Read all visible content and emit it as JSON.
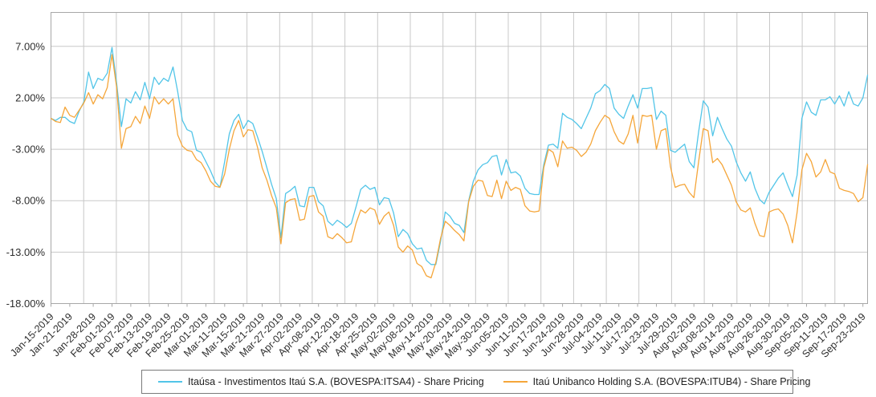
{
  "page": {
    "background": "#ffffff"
  },
  "chart_data": {
    "type": "line",
    "title": "",
    "grid": true,
    "legend_position": "bottom-center",
    "colors": {
      "grid": "#c8c8c8",
      "border": "#a7a7a7",
      "axis_text": "#2e2e2e"
    },
    "y_axis": {
      "unit": "%",
      "ylim": [
        -18,
        10.3
      ],
      "tick_values": [
        7,
        2,
        -3,
        -8,
        -13,
        -18
      ],
      "tick_labels": [
        "7.00%",
        "2.00%",
        "-3.00%",
        "-8.00%",
        "-13.00%",
        "-18.00%"
      ]
    },
    "x_axis": {
      "tick_indices": [
        0,
        4,
        9,
        13,
        17,
        21,
        25,
        29,
        33,
        37,
        41,
        45,
        49,
        53,
        57,
        61,
        65,
        69,
        73,
        77,
        81,
        85,
        89,
        93,
        97,
        101,
        105,
        109,
        113,
        117,
        121,
        125,
        129,
        133,
        137,
        141,
        145,
        149,
        153,
        157,
        161,
        165,
        169,
        173
      ],
      "tick_labels": [
        "Jan-15-2019",
        "Jan-21-2019",
        "Jan-28-2019",
        "Feb-01-2019",
        "Feb-07-2019",
        "Feb-13-2019",
        "Feb-19-2019",
        "Feb-25-2019",
        "Mar-01-2019",
        "Mar-11-2019",
        "Mar-15-2019",
        "Mar-21-2019",
        "Mar-27-2019",
        "Apr-02-2019",
        "Apr-08-2019",
        "Apr-12-2019",
        "Apr-18-2019",
        "Apr-25-2019",
        "May-02-2019",
        "May-08-2019",
        "May-14-2019",
        "May-20-2019",
        "May-24-2019",
        "May-30-2019",
        "Jun-05-2019",
        "Jun-11-2019",
        "Jun-17-2019",
        "Jun-24-2019",
        "Jun-28-2019",
        "Jul-04-2019",
        "Jul-11-2019",
        "Jul-17-2019",
        "Jul-23-2019",
        "Jul-29-2019",
        "Aug-02-2019",
        "Aug-08-2019",
        "Aug-14-2019",
        "Aug-20-2019",
        "Aug-26-2019",
        "Aug-30-2019",
        "Sep-05-2019",
        "Sep-11-2019",
        "Sep-17-2019",
        "Sep-23-2019"
      ]
    },
    "dates": [
      "Jan-15-2019",
      "Jan-16-2019",
      "Jan-17-2019",
      "Jan-18-2019",
      "Jan-21-2019",
      "Jan-22-2019",
      "Jan-23-2019",
      "Jan-24-2019",
      "Jan-25-2019",
      "Jan-28-2019",
      "Jan-29-2019",
      "Jan-30-2019",
      "Jan-31-2019",
      "Feb-01-2019",
      "Feb-04-2019",
      "Feb-05-2019",
      "Feb-06-2019",
      "Feb-07-2019",
      "Feb-08-2019",
      "Feb-11-2019",
      "Feb-12-2019",
      "Feb-13-2019",
      "Feb-14-2019",
      "Feb-15-2019",
      "Feb-18-2019",
      "Feb-19-2019",
      "Feb-20-2019",
      "Feb-21-2019",
      "Feb-22-2019",
      "Feb-25-2019",
      "Feb-26-2019",
      "Feb-27-2019",
      "Feb-28-2019",
      "Mar-01-2019",
      "Mar-06-2019",
      "Mar-07-2019",
      "Mar-08-2019",
      "Mar-11-2019",
      "Mar-12-2019",
      "Mar-13-2019",
      "Mar-14-2019",
      "Mar-15-2019",
      "Mar-18-2019",
      "Mar-19-2019",
      "Mar-20-2019",
      "Mar-21-2019",
      "Mar-22-2019",
      "Mar-25-2019",
      "Mar-26-2019",
      "Mar-27-2019",
      "Mar-28-2019",
      "Mar-29-2019",
      "Apr-01-2019",
      "Apr-02-2019",
      "Apr-03-2019",
      "Apr-04-2019",
      "Apr-05-2019",
      "Apr-08-2019",
      "Apr-09-2019",
      "Apr-10-2019",
      "Apr-11-2019",
      "Apr-12-2019",
      "Apr-15-2019",
      "Apr-16-2019",
      "Apr-17-2019",
      "Apr-18-2019",
      "Apr-22-2019",
      "Apr-23-2019",
      "Apr-24-2019",
      "Apr-25-2019",
      "Apr-26-2019",
      "Apr-29-2019",
      "Apr-30-2019",
      "May-02-2019",
      "May-03-2019",
      "May-06-2019",
      "May-07-2019",
      "May-08-2019",
      "May-09-2019",
      "May-10-2019",
      "May-13-2019",
      "May-14-2019",
      "May-15-2019",
      "May-16-2019",
      "May-17-2019",
      "May-20-2019",
      "May-21-2019",
      "May-22-2019",
      "May-23-2019",
      "May-24-2019",
      "May-27-2019",
      "May-28-2019",
      "May-29-2019",
      "May-30-2019",
      "May-31-2019",
      "Jun-03-2019",
      "Jun-04-2019",
      "Jun-05-2019",
      "Jun-06-2019",
      "Jun-07-2019",
      "Jun-10-2019",
      "Jun-11-2019",
      "Jun-12-2019",
      "Jun-13-2019",
      "Jun-14-2019",
      "Jun-17-2019",
      "Jun-18-2019",
      "Jun-19-2019",
      "Jun-21-2019",
      "Jun-24-2019",
      "Jun-25-2019",
      "Jun-26-2019",
      "Jun-27-2019",
      "Jun-28-2019",
      "Jul-01-2019",
      "Jul-02-2019",
      "Jul-03-2019",
      "Jul-04-2019",
      "Jul-05-2019",
      "Jul-08-2019",
      "Jul-10-2019",
      "Jul-11-2019",
      "Jul-12-2019",
      "Jul-15-2019",
      "Jul-16-2019",
      "Jul-17-2019",
      "Jul-18-2019",
      "Jul-19-2019",
      "Jul-22-2019",
      "Jul-23-2019",
      "Jul-24-2019",
      "Jul-25-2019",
      "Jul-26-2019",
      "Jul-29-2019",
      "Jul-30-2019",
      "Jul-31-2019",
      "Aug-01-2019",
      "Aug-02-2019",
      "Aug-05-2019",
      "Aug-06-2019",
      "Aug-07-2019",
      "Aug-08-2019",
      "Aug-09-2019",
      "Aug-12-2019",
      "Aug-13-2019",
      "Aug-14-2019",
      "Aug-15-2019",
      "Aug-16-2019",
      "Aug-19-2019",
      "Aug-20-2019",
      "Aug-21-2019",
      "Aug-22-2019",
      "Aug-23-2019",
      "Aug-26-2019",
      "Aug-27-2019",
      "Aug-28-2019",
      "Aug-29-2019",
      "Aug-30-2019",
      "Sep-02-2019",
      "Sep-03-2019",
      "Sep-04-2019",
      "Sep-05-2019",
      "Sep-06-2019",
      "Sep-09-2019",
      "Sep-10-2019",
      "Sep-11-2019",
      "Sep-12-2019",
      "Sep-13-2019",
      "Sep-16-2019",
      "Sep-17-2019",
      "Sep-18-2019",
      "Sep-19-2019",
      "Sep-20-2019",
      "Sep-23-2019",
      "Sep-24-2019"
    ],
    "series": [
      {
        "name": "Itaúsa - Investimentos Itaú S.A. (BOVESPA:ITSA4) - Share Pricing",
        "color": "#52c5e8",
        "values": [
          0.0,
          -0.2,
          0.1,
          0.1,
          -0.3,
          -0.5,
          0.7,
          1.6,
          4.5,
          2.9,
          3.9,
          3.7,
          4.4,
          6.9,
          3.4,
          -0.8,
          1.9,
          1.5,
          2.6,
          1.8,
          3.5,
          1.9,
          4.0,
          3.3,
          3.9,
          3.6,
          5.0,
          2.6,
          -0.2,
          -1.1,
          -1.3,
          -3.1,
          -3.3,
          -4.2,
          -5.1,
          -6.2,
          -6.7,
          -4.2,
          -1.5,
          -0.2,
          0.4,
          -1.0,
          -0.2,
          -0.5,
          -1.8,
          -3.2,
          -4.8,
          -6.4,
          -7.8,
          -11.6,
          -7.3,
          -7.0,
          -6.6,
          -8.5,
          -8.6,
          -6.7,
          -6.7,
          -8.1,
          -8.5,
          -10.0,
          -10.4,
          -9.9,
          -10.2,
          -10.6,
          -10.2,
          -8.6,
          -6.9,
          -6.5,
          -6.9,
          -6.7,
          -8.4,
          -7.7,
          -7.8,
          -9.2,
          -11.5,
          -10.8,
          -11.2,
          -12.2,
          -12.7,
          -12.6,
          -13.8,
          -14.2,
          -14.2,
          -12.0,
          -9.1,
          -9.5,
          -10.2,
          -10.4,
          -11.1,
          -8.0,
          -6.1,
          -5.0,
          -4.5,
          -4.3,
          -3.7,
          -3.6,
          -5.5,
          -4.0,
          -5.3,
          -5.2,
          -5.6,
          -6.8,
          -7.3,
          -7.4,
          -7.4,
          -4.5,
          -2.6,
          -2.5,
          -2.9,
          0.5,
          0.1,
          -0.1,
          -0.5,
          -1.0,
          0.0,
          1.0,
          2.4,
          2.7,
          3.3,
          2.9,
          1.0,
          0.4,
          0.0,
          1.2,
          2.3,
          1.0,
          2.9,
          2.9,
          3.0,
          -0.1,
          0.7,
          0.3,
          -3.1,
          -3.3,
          -2.9,
          -2.5,
          -4.2,
          -4.8,
          -1.3,
          1.7,
          1.1,
          -1.7,
          0.1,
          -1.0,
          -2.0,
          -2.7,
          -4.2,
          -5.3,
          -6.1,
          -5.2,
          -6.8,
          -7.9,
          -8.3,
          -7.2,
          -6.5,
          -5.8,
          -5.3,
          -6.5,
          -7.6,
          -5.5,
          0.0,
          1.6,
          0.6,
          0.3,
          1.8,
          1.8,
          2.1,
          1.4,
          2.2,
          1.2,
          2.6,
          1.4,
          1.2,
          2.0,
          4.2
        ]
      },
      {
        "name": "Itaú Unibanco Holding S.A. (BOVESPA:ITUB4) - Share Pricing",
        "color": "#f5a63a",
        "values": [
          0.0,
          -0.3,
          -0.4,
          1.1,
          0.3,
          0.1,
          0.8,
          1.5,
          2.5,
          1.4,
          2.3,
          1.9,
          3.0,
          6.2,
          3.0,
          -2.9,
          -1.0,
          -0.8,
          0.2,
          -0.5,
          1.2,
          0.0,
          2.1,
          1.4,
          1.9,
          1.4,
          1.9,
          -1.6,
          -2.7,
          -3.1,
          -3.2,
          -4.0,
          -4.3,
          -5.1,
          -6.1,
          -6.6,
          -6.7,
          -5.4,
          -3.0,
          -1.2,
          -0.2,
          -1.8,
          -1.1,
          -1.2,
          -2.8,
          -4.8,
          -6.0,
          -7.5,
          -8.7,
          -12.2,
          -8.2,
          -7.9,
          -7.8,
          -9.9,
          -9.8,
          -7.6,
          -7.5,
          -9.1,
          -9.5,
          -11.5,
          -11.7,
          -11.2,
          -11.6,
          -12.1,
          -12.0,
          -10.2,
          -8.9,
          -9.2,
          -8.7,
          -8.9,
          -10.3,
          -9.5,
          -9.1,
          -10.4,
          -12.5,
          -13.0,
          -12.4,
          -12.8,
          -14.1,
          -14.4,
          -15.3,
          -15.5,
          -14.0,
          -11.7,
          -10.0,
          -10.4,
          -10.9,
          -11.3,
          -11.9,
          -8.1,
          -6.6,
          -6.0,
          -6.1,
          -7.5,
          -7.6,
          -6.0,
          -7.8,
          -6.1,
          -7.0,
          -6.7,
          -6.9,
          -8.5,
          -9.0,
          -9.1,
          -9.0,
          -4.8,
          -3.0,
          -3.3,
          -4.7,
          -2.2,
          -2.9,
          -2.8,
          -3.1,
          -3.7,
          -3.3,
          -2.5,
          -1.2,
          -0.4,
          0.3,
          0.0,
          -1.3,
          -2.2,
          -2.5,
          -1.5,
          0.3,
          -2.4,
          0.3,
          0.2,
          0.3,
          -3.0,
          -1.2,
          -1.0,
          -4.7,
          -6.7,
          -6.5,
          -6.4,
          -7.2,
          -7.7,
          -4.2,
          -1.0,
          -1.2,
          -4.3,
          -3.9,
          -4.5,
          -5.5,
          -6.5,
          -8.1,
          -8.9,
          -9.1,
          -8.7,
          -10.2,
          -11.4,
          -11.5,
          -9.1,
          -8.9,
          -8.8,
          -9.3,
          -10.4,
          -12.1,
          -9.1,
          -5.0,
          -3.4,
          -4.2,
          -5.7,
          -5.2,
          -4.0,
          -5.2,
          -5.4,
          -6.8,
          -7.0,
          -7.1,
          -7.3,
          -8.1,
          -7.7,
          -4.5
        ]
      }
    ]
  }
}
